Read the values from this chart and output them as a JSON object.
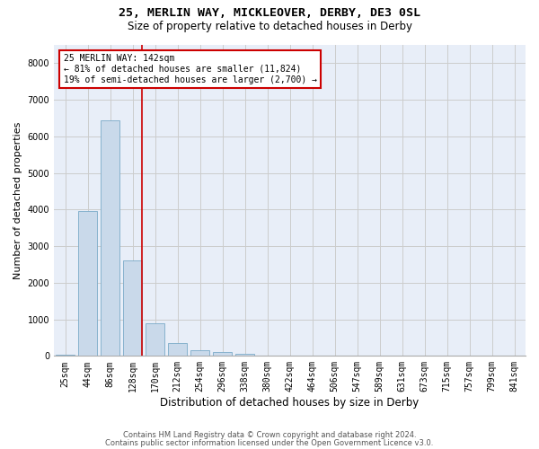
{
  "title_line1": "25, MERLIN WAY, MICKLEOVER, DERBY, DE3 0SL",
  "title_line2": "Size of property relative to detached houses in Derby",
  "xlabel": "Distribution of detached houses by size in Derby",
  "ylabel": "Number of detached properties",
  "categories": [
    "25sqm",
    "44sqm",
    "86sqm",
    "128sqm",
    "170sqm",
    "212sqm",
    "254sqm",
    "296sqm",
    "338sqm",
    "380sqm",
    "422sqm",
    "464sqm",
    "506sqm",
    "547sqm",
    "589sqm",
    "631sqm",
    "673sqm",
    "715sqm",
    "757sqm",
    "799sqm",
    "841sqm"
  ],
  "values": [
    30,
    3950,
    6450,
    2600,
    900,
    350,
    150,
    110,
    60,
    0,
    0,
    0,
    0,
    0,
    0,
    0,
    0,
    0,
    0,
    0,
    0
  ],
  "bar_color": "#c9d9ea",
  "bar_edge_color": "#7aaac8",
  "annotation_text": "25 MERLIN WAY: 142sqm\n← 81% of detached houses are smaller (11,824)\n19% of semi-detached houses are larger (2,700) →",
  "annotation_box_color": "#ffffff",
  "annotation_box_edge_color": "#cc0000",
  "vline_color": "#cc0000",
  "ylim": [
    0,
    8500
  ],
  "yticks": [
    0,
    1000,
    2000,
    3000,
    4000,
    5000,
    6000,
    7000,
    8000
  ],
  "grid_color": "#cccccc",
  "background_color": "#e8eef8",
  "footer_line1": "Contains HM Land Registry data © Crown copyright and database right 2024.",
  "footer_line2": "Contains public sector information licensed under the Open Government Licence v3.0.",
  "title1_fontsize": 9.5,
  "title2_fontsize": 8.5,
  "xlabel_fontsize": 8.5,
  "ylabel_fontsize": 8,
  "tick_fontsize": 7,
  "annotation_fontsize": 7,
  "footer_fontsize": 6
}
